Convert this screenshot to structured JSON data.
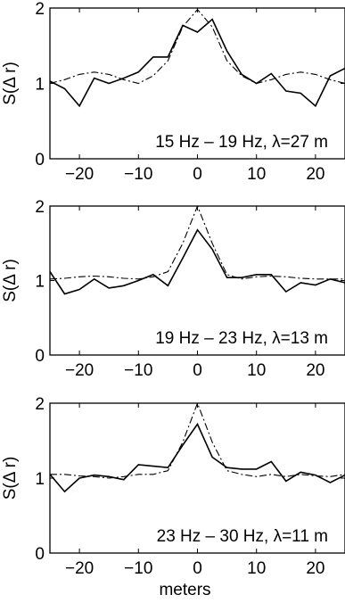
{
  "chart_data": [
    {
      "type": "line",
      "annotation": "15 Hz – 19 Hz, λ=27 m",
      "ylabel": "S(Δ r)",
      "xlabel": "",
      "xlim": [
        -25,
        25
      ],
      "ylim": [
        0,
        2
      ],
      "xticks": [
        -20,
        -10,
        0,
        10,
        20
      ],
      "yticks": [
        0,
        1,
        2
      ],
      "grid": false,
      "series": [
        {
          "style": "solid",
          "x": [
            -25,
            -22.5,
            -20,
            -17.5,
            -15,
            -12.5,
            -10,
            -7.5,
            -5,
            -2.5,
            0,
            2.5,
            5,
            7.5,
            10,
            12.5,
            15,
            17.5,
            20,
            22.5,
            25
          ],
          "y": [
            1.03,
            0.93,
            0.7,
            1.07,
            1.0,
            1.07,
            1.15,
            1.35,
            1.35,
            1.77,
            1.68,
            1.85,
            1.43,
            1.12,
            1.0,
            1.13,
            0.9,
            0.87,
            0.7,
            1.1,
            1.2
          ]
        },
        {
          "style": "dash-dot",
          "x": [
            -25,
            -22.5,
            -20,
            -17.5,
            -15,
            -12.5,
            -10,
            -7.5,
            -5,
            -2.5,
            0,
            2.5,
            5,
            7.5,
            10,
            12.5,
            15,
            17.5,
            20,
            22.5,
            25
          ],
          "y": [
            1.0,
            1.05,
            1.12,
            1.15,
            1.12,
            1.05,
            1.0,
            1.1,
            1.3,
            1.75,
            1.98,
            1.75,
            1.3,
            1.1,
            1.0,
            1.05,
            1.12,
            1.15,
            1.12,
            1.05,
            1.0
          ]
        }
      ]
    },
    {
      "type": "line",
      "annotation": "19 Hz – 23 Hz, λ=13 m",
      "ylabel": "S(Δ r)",
      "xlabel": "",
      "xlim": [
        -25,
        25
      ],
      "ylim": [
        0,
        2
      ],
      "xticks": [
        -20,
        -10,
        0,
        10,
        20
      ],
      "yticks": [
        0,
        1,
        2
      ],
      "grid": false,
      "series": [
        {
          "style": "solid",
          "x": [
            -25,
            -22.5,
            -20,
            -17.5,
            -15,
            -12.5,
            -10,
            -7.5,
            -5,
            -2.5,
            0,
            2.5,
            5,
            7.5,
            10,
            12.5,
            15,
            17.5,
            20,
            22.5,
            25
          ],
          "y": [
            1.12,
            0.82,
            0.88,
            1.02,
            0.9,
            0.93,
            1.0,
            1.08,
            0.93,
            1.3,
            1.68,
            1.42,
            1.04,
            1.04,
            1.08,
            1.08,
            0.85,
            0.97,
            0.94,
            1.02,
            0.97
          ]
        },
        {
          "style": "dash-dot",
          "x": [
            -25,
            -22.5,
            -20,
            -17.5,
            -15,
            -12.5,
            -10,
            -7.5,
            -5,
            -2.5,
            0,
            2.5,
            5,
            7.5,
            10,
            12.5,
            15,
            17.5,
            20,
            22.5,
            25
          ],
          "y": [
            1.02,
            1.03,
            1.05,
            1.06,
            1.05,
            1.03,
            1.02,
            1.05,
            1.12,
            1.5,
            2.0,
            1.5,
            1.08,
            1.02,
            1.05,
            1.06,
            1.05,
            1.03,
            1.02,
            1.02,
            1.02
          ]
        }
      ]
    },
    {
      "type": "line",
      "annotation": "23 Hz – 30 Hz, λ=11 m",
      "ylabel": "S(Δ r)",
      "xlabel": "meters",
      "xlim": [
        -25,
        25
      ],
      "ylim": [
        0,
        2
      ],
      "xticks": [
        -20,
        -10,
        0,
        10,
        20
      ],
      "yticks": [
        0,
        1,
        2
      ],
      "grid": false,
      "series": [
        {
          "style": "solid",
          "x": [
            -25,
            -22.5,
            -20,
            -17.5,
            -15,
            -12.5,
            -10,
            -7.5,
            -5,
            -2.5,
            0,
            2.5,
            5,
            7.5,
            10,
            12.5,
            15,
            17.5,
            20,
            22.5,
            25
          ],
          "y": [
            1.05,
            0.82,
            1.0,
            1.04,
            1.02,
            0.98,
            1.18,
            1.16,
            1.14,
            1.44,
            1.72,
            1.28,
            1.14,
            1.12,
            1.12,
            1.22,
            0.96,
            1.08,
            1.04,
            0.94,
            1.04
          ]
        },
        {
          "style": "dash-dot",
          "x": [
            -25,
            -22.5,
            -20,
            -17.5,
            -15,
            -12.5,
            -10,
            -7.5,
            -5,
            -2.5,
            0,
            2.5,
            5,
            7.5,
            10,
            12.5,
            15,
            17.5,
            20,
            22.5,
            25
          ],
          "y": [
            1.05,
            1.05,
            1.03,
            1.02,
            1.0,
            1.02,
            1.05,
            1.05,
            1.1,
            1.48,
            2.0,
            1.48,
            1.1,
            1.05,
            1.02,
            1.05,
            1.02,
            1.05,
            1.03,
            1.02,
            1.05
          ]
        }
      ]
    }
  ]
}
